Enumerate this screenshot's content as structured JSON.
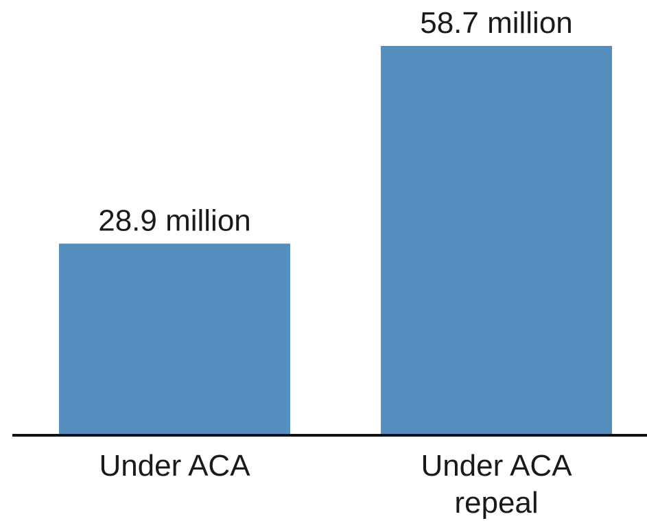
{
  "chart_data": {
    "type": "bar",
    "categories": [
      [
        "Under ACA"
      ],
      [
        "Under ACA",
        "repeal"
      ]
    ],
    "values": [
      28.9,
      58.7
    ],
    "value_labels": [
      "28.9 million",
      "58.7 million"
    ],
    "unit": "million",
    "title": "",
    "xlabel": "",
    "ylabel": "",
    "ylim": [
      0,
      58.7
    ],
    "grid": false,
    "legend": "none",
    "colors": {
      "bar": "#558fbf",
      "axis": "#111111",
      "text": "#1a1a1a"
    }
  }
}
